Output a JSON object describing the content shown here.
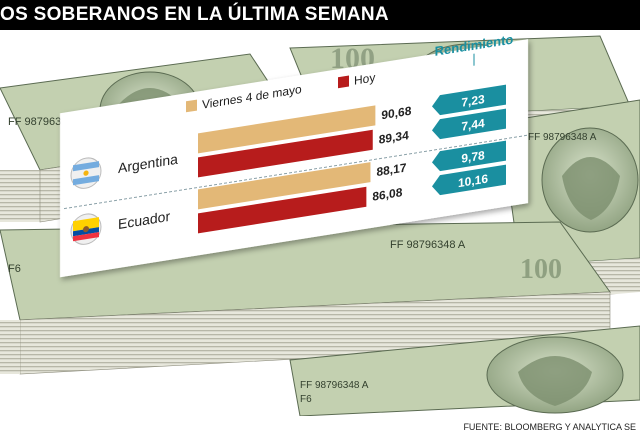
{
  "header": {
    "title": "OS SOBERANOS EN LA ÚLTIMA SEMANA"
  },
  "banknote_text": {
    "serial": "FF 98796348 A",
    "denomination": "100",
    "series_code": "F6"
  },
  "chart_data": {
    "type": "bar",
    "categories": [
      "Argentina",
      "Ecuador"
    ],
    "series": [
      {
        "name": "Viernes 4 de mayo",
        "values": [
          90.68,
          88.17
        ],
        "labels": [
          "90,68",
          "88,17"
        ],
        "color": "#e3b877"
      },
      {
        "name": "Hoy",
        "values": [
          89.34,
          86.08
        ],
        "labels": [
          "89,34",
          "86,08"
        ],
        "color": "#b71c1c"
      }
    ],
    "rendimiento": {
      "title": "Rendimiento",
      "values": [
        [
          7.23,
          7.44
        ],
        [
          9.78,
          10.16
        ]
      ],
      "labels": [
        [
          "7,23",
          "7,44"
        ],
        [
          "9,78",
          "10,16"
        ]
      ],
      "color": "#1a8fa0"
    },
    "flags": [
      "argentina-flag-icon",
      "ecuador-flag-icon"
    ]
  },
  "footer": {
    "source": "FUENTE: BLOOMBERG Y ANALYTICA SE"
  },
  "colors": {
    "bill_green": "#b9c9a6",
    "bill_dark": "#4e5f47",
    "panel": "#ffffff"
  }
}
